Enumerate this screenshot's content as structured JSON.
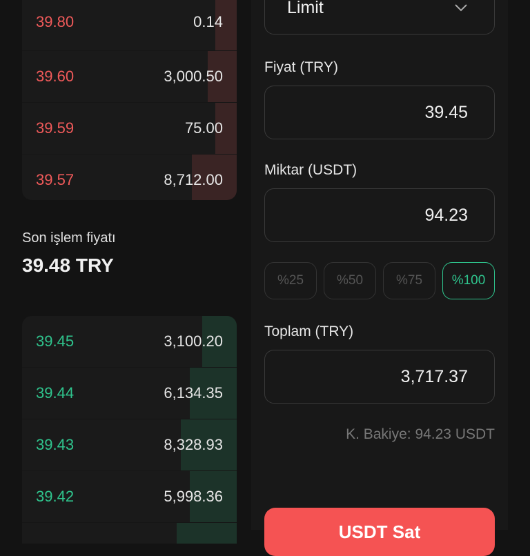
{
  "order_book": {
    "asks": [
      {
        "price": "39.80",
        "amount": "0.14",
        "depth": 0.1
      },
      {
        "price": "39.60",
        "amount": "3,000.50",
        "depth": 0.135
      },
      {
        "price": "39.59",
        "amount": "75.00",
        "depth": 0.1
      },
      {
        "price": "39.57",
        "amount": "8,712.00",
        "depth": 0.21
      }
    ],
    "last_trade": {
      "label": "Son işlem fiyatı",
      "value": "39.48 TRY"
    },
    "bids": [
      {
        "price": "39.45",
        "amount": "3,100.20",
        "depth": 0.16
      },
      {
        "price": "39.44",
        "amount": "6,134.35",
        "depth": 0.22
      },
      {
        "price": "39.43",
        "amount": "8,328.93",
        "depth": 0.26
      },
      {
        "price": "39.42",
        "amount": "5,998.36",
        "depth": 0.22
      },
      {
        "price": "",
        "amount": "",
        "depth": 0.28
      }
    ]
  },
  "form": {
    "order_type": "Limit",
    "price_label": "Fiyat (TRY)",
    "price_value": "39.45",
    "amount_label": "Miktar (USDT)",
    "amount_value": "94.23",
    "percent_options": [
      "%25",
      "%50",
      "%75",
      "%100"
    ],
    "selected_percent": "%100",
    "total_label": "Toplam (TRY)",
    "total_value": "3,717.37",
    "balance": "K. Bakiye: 94.23 USDT",
    "sell_button": "USDT Sat"
  },
  "colors": {
    "ask": "#f05a5a",
    "bid": "#2fc48d",
    "sell": "#f55353"
  }
}
